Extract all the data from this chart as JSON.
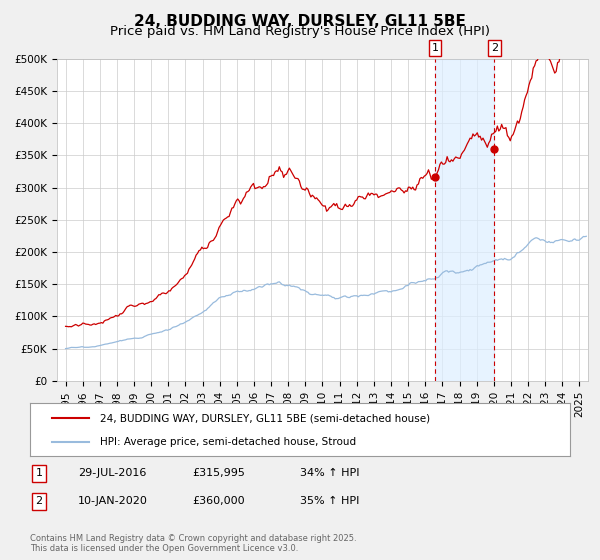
{
  "title": "24, BUDDING WAY, DURSLEY, GL11 5BE",
  "subtitle": "Price paid vs. HM Land Registry's House Price Index (HPI)",
  "ylim": [
    0,
    500000
  ],
  "yticks": [
    0,
    50000,
    100000,
    150000,
    200000,
    250000,
    300000,
    350000,
    400000,
    450000,
    500000
  ],
  "ytick_labels": [
    "£0",
    "£50K",
    "£100K",
    "£150K",
    "£200K",
    "£250K",
    "£300K",
    "£350K",
    "£400K",
    "£450K",
    "£500K"
  ],
  "xlim_start": 1994.5,
  "xlim_end": 2025.5,
  "xtick_years": [
    1995,
    1996,
    1997,
    1998,
    1999,
    2000,
    2001,
    2002,
    2003,
    2004,
    2005,
    2006,
    2007,
    2008,
    2009,
    2010,
    2011,
    2012,
    2013,
    2014,
    2015,
    2016,
    2017,
    2018,
    2019,
    2020,
    2021,
    2022,
    2023,
    2024,
    2025
  ],
  "background_color": "#f0f0f0",
  "plot_bg_color": "#ffffff",
  "grid_color": "#cccccc",
  "red_line_color": "#cc0000",
  "blue_line_color": "#99bbdd",
  "shade_color": "#ddeeff",
  "vline_color": "#cc0000",
  "marker1_x": 2016.58,
  "marker1_y": 315995,
  "marker2_x": 2020.03,
  "marker2_y": 360000,
  "legend_red_label": "24, BUDDING WAY, DURSLEY, GL11 5BE (semi-detached house)",
  "legend_blue_label": "HPI: Average price, semi-detached house, Stroud",
  "footer": "Contains HM Land Registry data © Crown copyright and database right 2025.\nThis data is licensed under the Open Government Licence v3.0.",
  "title_fontsize": 11,
  "subtitle_fontsize": 9.5,
  "tick_fontsize": 7.5,
  "legend_fontsize": 7.5,
  "annotation_fontsize": 8,
  "footer_fontsize": 6
}
